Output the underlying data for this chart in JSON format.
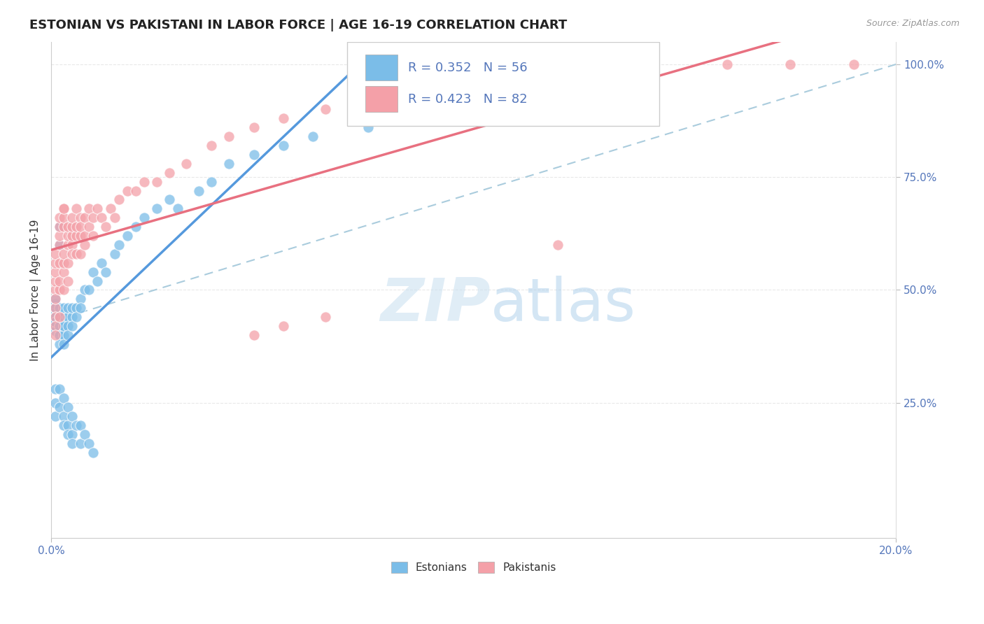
{
  "title": "ESTONIAN VS PAKISTANI IN LABOR FORCE | AGE 16-19 CORRELATION CHART",
  "source_text": "Source: ZipAtlas.com",
  "ylabel": "In Labor Force | Age 16-19",
  "legend_r1": "R = 0.352",
  "legend_n1": "N = 56",
  "legend_r2": "R = 0.423",
  "legend_n2": "N = 82",
  "xlim": [
    0.0,
    0.2
  ],
  "ylim": [
    -0.05,
    1.05
  ],
  "right_yticks": [
    0.25,
    0.5,
    0.75,
    1.0
  ],
  "right_yticklabels": [
    "25.0%",
    "50.0%",
    "75.0%",
    "100.0%"
  ],
  "watermark1": "ZIP",
  "watermark2": "atlas",
  "estonian_color": "#7bbde8",
  "pakistani_color": "#f4a0a8",
  "estonian_line_color": "#5599dd",
  "pakistani_line_color": "#e87080",
  "ref_line_color": "#aaccdd",
  "background_color": "#ffffff",
  "grid_color": "#e8e8e8",
  "title_color": "#222222",
  "axis_label_color": "#333333",
  "tick_color": "#5577bb",
  "legend_text_color": "#5577bb",
  "estonian_points_x": [
    0.001,
    0.001,
    0.001,
    0.001,
    0.001,
    0.001,
    0.001,
    0.001,
    0.001,
    0.002,
    0.002,
    0.002,
    0.002,
    0.002,
    0.002,
    0.002,
    0.002,
    0.002,
    0.003,
    0.003,
    0.003,
    0.003,
    0.003,
    0.003,
    0.004,
    0.004,
    0.004,
    0.004,
    0.005,
    0.005,
    0.005,
    0.006,
    0.006,
    0.007,
    0.007,
    0.008,
    0.009,
    0.01,
    0.011,
    0.012,
    0.013,
    0.015,
    0.016,
    0.018,
    0.02,
    0.022,
    0.025,
    0.028,
    0.03,
    0.035,
    0.038,
    0.042,
    0.048,
    0.055,
    0.062,
    0.075
  ],
  "estonian_points_y": [
    0.43,
    0.45,
    0.47,
    0.42,
    0.46,
    0.44,
    0.41,
    0.48,
    0.43,
    0.6,
    0.64,
    0.4,
    0.42,
    0.44,
    0.46,
    0.42,
    0.4,
    0.38,
    0.42,
    0.44,
    0.46,
    0.4,
    0.42,
    0.38,
    0.44,
    0.46,
    0.42,
    0.4,
    0.44,
    0.46,
    0.42,
    0.46,
    0.44,
    0.48,
    0.46,
    0.5,
    0.5,
    0.54,
    0.52,
    0.56,
    0.54,
    0.58,
    0.6,
    0.62,
    0.64,
    0.66,
    0.68,
    0.7,
    0.68,
    0.72,
    0.74,
    0.78,
    0.8,
    0.82,
    0.84,
    0.86
  ],
  "estonian_low_x": [
    0.001,
    0.001,
    0.001,
    0.002,
    0.002,
    0.003,
    0.003,
    0.003,
    0.004,
    0.004,
    0.004,
    0.005,
    0.005,
    0.005,
    0.006,
    0.007,
    0.007,
    0.008,
    0.009,
    0.01
  ],
  "estonian_low_y": [
    0.28,
    0.25,
    0.22,
    0.28,
    0.24,
    0.26,
    0.22,
    0.2,
    0.24,
    0.2,
    0.18,
    0.22,
    0.18,
    0.16,
    0.2,
    0.2,
    0.16,
    0.18,
    0.16,
    0.14
  ],
  "pakistani_points_x": [
    0.001,
    0.001,
    0.001,
    0.001,
    0.001,
    0.001,
    0.001,
    0.001,
    0.001,
    0.001,
    0.002,
    0.002,
    0.002,
    0.002,
    0.002,
    0.002,
    0.002,
    0.002,
    0.003,
    0.003,
    0.003,
    0.003,
    0.003,
    0.003,
    0.003,
    0.003,
    0.004,
    0.004,
    0.004,
    0.004,
    0.004,
    0.005,
    0.005,
    0.005,
    0.005,
    0.005,
    0.006,
    0.006,
    0.006,
    0.006,
    0.007,
    0.007,
    0.007,
    0.007,
    0.008,
    0.008,
    0.008,
    0.009,
    0.009,
    0.01,
    0.01,
    0.011,
    0.012,
    0.013,
    0.014,
    0.015,
    0.016,
    0.018,
    0.02,
    0.022,
    0.025,
    0.028,
    0.032,
    0.038,
    0.042,
    0.048,
    0.055,
    0.065,
    0.075,
    0.085,
    0.095,
    0.105,
    0.115,
    0.125,
    0.14,
    0.16,
    0.175,
    0.19,
    0.048,
    0.055,
    0.065,
    0.12
  ],
  "pakistani_points_y": [
    0.5,
    0.52,
    0.46,
    0.48,
    0.44,
    0.54,
    0.56,
    0.42,
    0.58,
    0.4,
    0.6,
    0.56,
    0.62,
    0.5,
    0.64,
    0.44,
    0.52,
    0.66,
    0.68,
    0.54,
    0.56,
    0.58,
    0.5,
    0.64,
    0.66,
    0.68,
    0.6,
    0.62,
    0.56,
    0.64,
    0.52,
    0.6,
    0.62,
    0.58,
    0.64,
    0.66,
    0.62,
    0.64,
    0.58,
    0.68,
    0.66,
    0.58,
    0.62,
    0.64,
    0.62,
    0.66,
    0.6,
    0.64,
    0.68,
    0.66,
    0.62,
    0.68,
    0.66,
    0.64,
    0.68,
    0.66,
    0.7,
    0.72,
    0.72,
    0.74,
    0.74,
    0.76,
    0.78,
    0.82,
    0.84,
    0.86,
    0.88,
    0.9,
    0.92,
    0.94,
    0.96,
    0.98,
    1.0,
    1.0,
    1.0,
    1.0,
    1.0,
    1.0,
    0.4,
    0.42,
    0.44,
    0.6
  ],
  "title_fontsize": 13,
  "axis_label_fontsize": 11,
  "tick_fontsize": 11,
  "legend_fontsize": 13
}
